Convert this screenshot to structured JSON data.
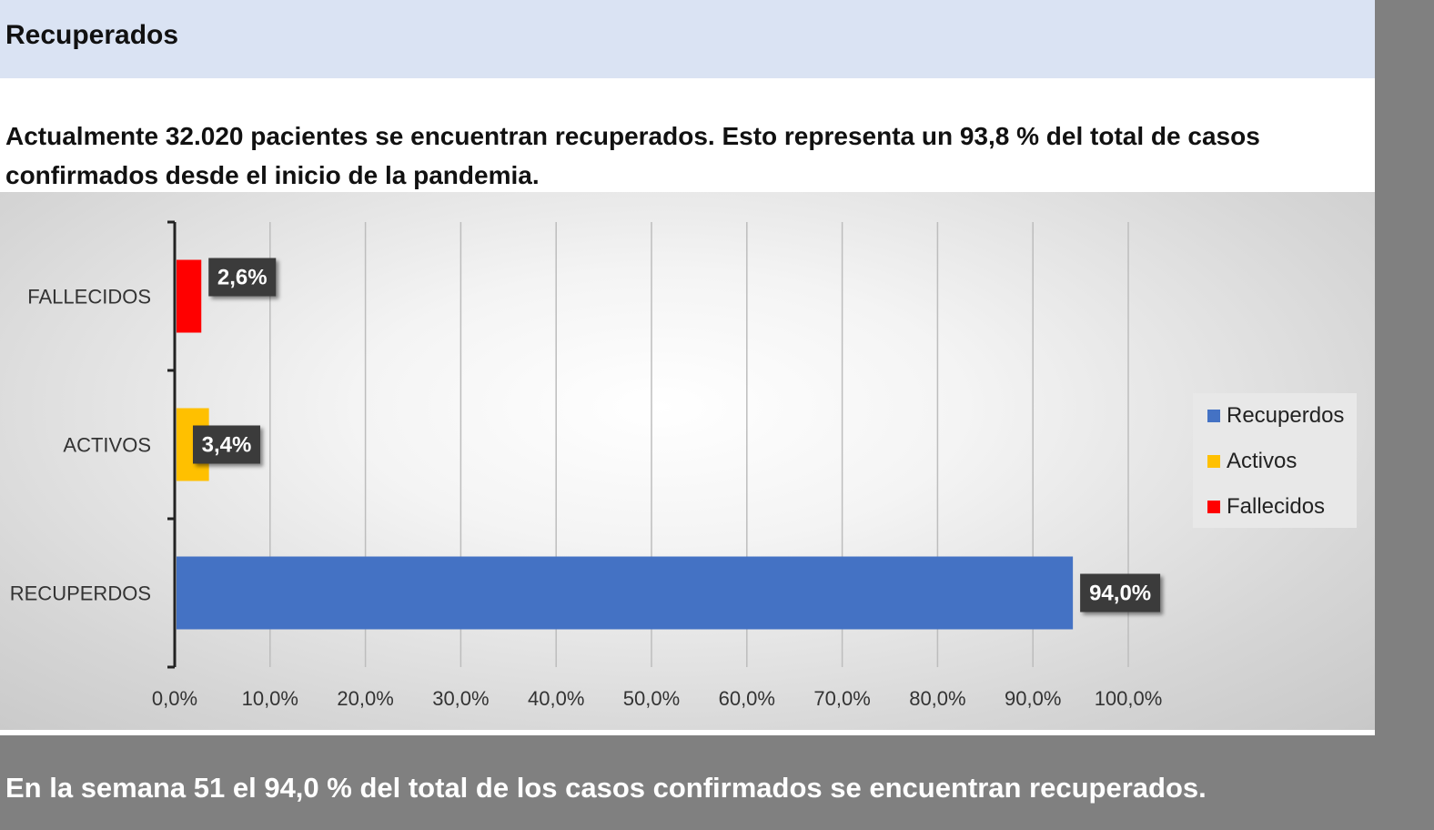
{
  "header": {
    "title": "Recuperados"
  },
  "intro": {
    "line1": "Actualmente 32.020 pacientes se encuentran recuperados. Esto representa un 93,8 % del total de casos",
    "line2": "confirmados desde el inicio de la pandemia."
  },
  "footer": {
    "text": "En la semana 51 el 94,0 % del total de los casos confirmados se encuentran recuperados."
  },
  "chart_data": {
    "type": "bar",
    "orientation": "horizontal",
    "categories": [
      "FALLECIDOS",
      "ACTIVOS",
      "RECUPERDOS"
    ],
    "values": [
      2.6,
      3.4,
      94.0
    ],
    "value_labels": [
      "2,6%",
      "3,4%",
      "94,0%"
    ],
    "colors": [
      "#ff0000",
      "#ffc000",
      "#4472c4"
    ],
    "xlim": [
      0,
      100
    ],
    "x_ticks": [
      "0,0%",
      "10,0%",
      "20,0%",
      "30,0%",
      "40,0%",
      "50,0%",
      "60,0%",
      "70,0%",
      "80,0%",
      "90,0%",
      "100,0%"
    ],
    "grid": true,
    "legend_position": "right",
    "legend": [
      {
        "label": "Recuperdos",
        "color": "#4472c4"
      },
      {
        "label": "Activos",
        "color": "#ffc000"
      },
      {
        "label": "Fallecidos",
        "color": "#ff0000"
      }
    ]
  }
}
